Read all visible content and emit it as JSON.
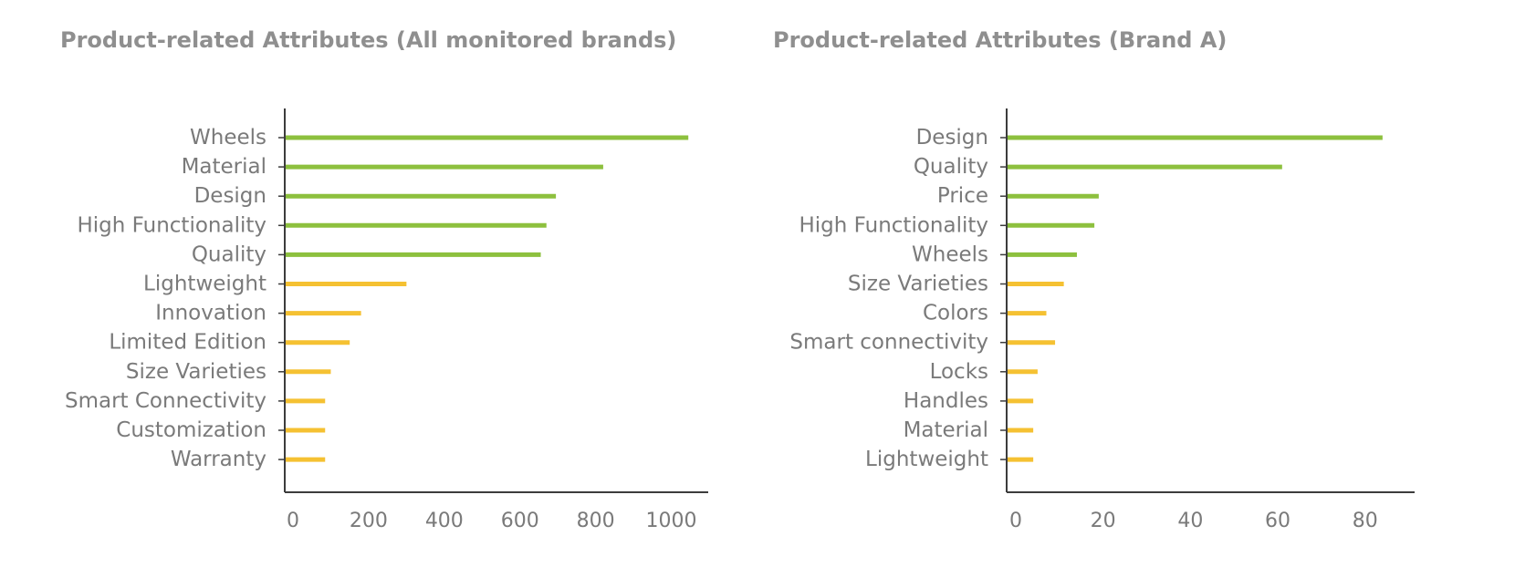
{
  "colors": {
    "green": "#8dc03e",
    "yellow": "#f5c132",
    "axis": "#3c3c3c",
    "text": "#7a7a7a",
    "title": "#8f8f8f"
  },
  "chart_data": [
    {
      "type": "bar",
      "orientation": "horizontal",
      "title": "Product-related Attributes (All monitored brands)",
      "xlabel": "",
      "ylabel": "",
      "categories": [
        "Wheels",
        "Material",
        "Design",
        "High Functionality",
        "Quality",
        "Lightweight",
        "Innovation",
        "Limited Edition",
        "Size Varieties",
        "Smart Connectivity",
        "Customization",
        "Warranty"
      ],
      "values": [
        1045,
        820,
        695,
        670,
        655,
        300,
        180,
        150,
        100,
        85,
        85,
        85
      ],
      "bar_colors": [
        "green",
        "green",
        "green",
        "green",
        "green",
        "yellow",
        "yellow",
        "yellow",
        "yellow",
        "yellow",
        "yellow",
        "yellow"
      ],
      "xlim": [
        0,
        1100
      ],
      "xticks": [
        0,
        200,
        400,
        600,
        800,
        1000
      ],
      "xtick_labels": [
        "0",
        "200",
        "400",
        "600",
        "800",
        "1000"
      ],
      "grid": false,
      "legend": "none"
    },
    {
      "type": "bar",
      "orientation": "horizontal",
      "title": "Product-related Attributes (Brand A)",
      "xlabel": "",
      "ylabel": "",
      "categories": [
        "Design",
        "Quality",
        "Price",
        "High Functionality",
        "Wheels",
        "Size Varieties",
        "Colors",
        "Smart connectivity",
        "Locks",
        "Handles",
        "Material",
        "Lightweight"
      ],
      "values": [
        84,
        61,
        19,
        18,
        14,
        11,
        7,
        9,
        5,
        4,
        4,
        4
      ],
      "bar_colors": [
        "green",
        "green",
        "green",
        "green",
        "green",
        "yellow",
        "yellow",
        "yellow",
        "yellow",
        "yellow",
        "yellow",
        "yellow"
      ],
      "xlim": [
        0,
        88
      ],
      "xticks": [
        0,
        20,
        40,
        60,
        80
      ],
      "xtick_labels": [
        "0",
        "20",
        "40",
        "60",
        "80"
      ],
      "grid": false,
      "legend": "none"
    }
  ]
}
